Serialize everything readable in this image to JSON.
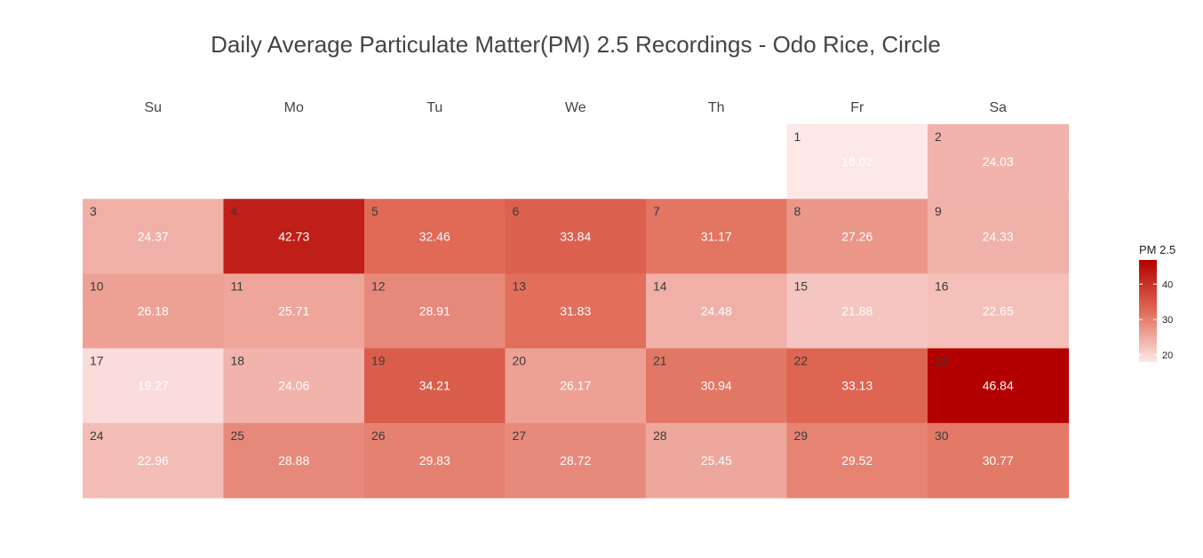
{
  "chart_data": {
    "type": "heatmap",
    "title": "Daily Average Particulate Matter(PM) 2.5 Recordings - Odo Rice, Circle",
    "weekdays": [
      "Su",
      "Mo",
      "Tu",
      "We",
      "Th",
      "Fr",
      "Sa"
    ],
    "first_weekday_index": 5,
    "days": [
      {
        "day": 1,
        "value": 18.02
      },
      {
        "day": 2,
        "value": 24.03
      },
      {
        "day": 3,
        "value": 24.37
      },
      {
        "day": 4,
        "value": 42.73
      },
      {
        "day": 5,
        "value": 32.46
      },
      {
        "day": 6,
        "value": 33.84
      },
      {
        "day": 7,
        "value": 31.17
      },
      {
        "day": 8,
        "value": 27.26
      },
      {
        "day": 9,
        "value": 24.33
      },
      {
        "day": 10,
        "value": 26.18
      },
      {
        "day": 11,
        "value": 25.71
      },
      {
        "day": 12,
        "value": 28.91
      },
      {
        "day": 13,
        "value": 31.83
      },
      {
        "day": 14,
        "value": 24.48
      },
      {
        "day": 15,
        "value": 21.88
      },
      {
        "day": 16,
        "value": 22.65
      },
      {
        "day": 17,
        "value": 19.27
      },
      {
        "day": 18,
        "value": 24.06
      },
      {
        "day": 19,
        "value": 34.21
      },
      {
        "day": 20,
        "value": 26.17
      },
      {
        "day": 21,
        "value": 30.94
      },
      {
        "day": 22,
        "value": 33.13
      },
      {
        "day": 23,
        "value": 46.84
      },
      {
        "day": 24,
        "value": 22.96
      },
      {
        "day": 25,
        "value": 28.88
      },
      {
        "day": 26,
        "value": 29.83
      },
      {
        "day": 27,
        "value": 28.72
      },
      {
        "day": 28,
        "value": 25.45
      },
      {
        "day": 29,
        "value": 29.52
      },
      {
        "day": 30,
        "value": 30.77
      }
    ],
    "legend": {
      "title": "PM 2.5",
      "ticks": [
        20,
        30,
        40
      ],
      "range": [
        18.02,
        46.84
      ],
      "placement": "right"
    },
    "colors": {
      "low": "#fde8e8",
      "mid": "#e06a56",
      "high": "#b30000"
    }
  }
}
